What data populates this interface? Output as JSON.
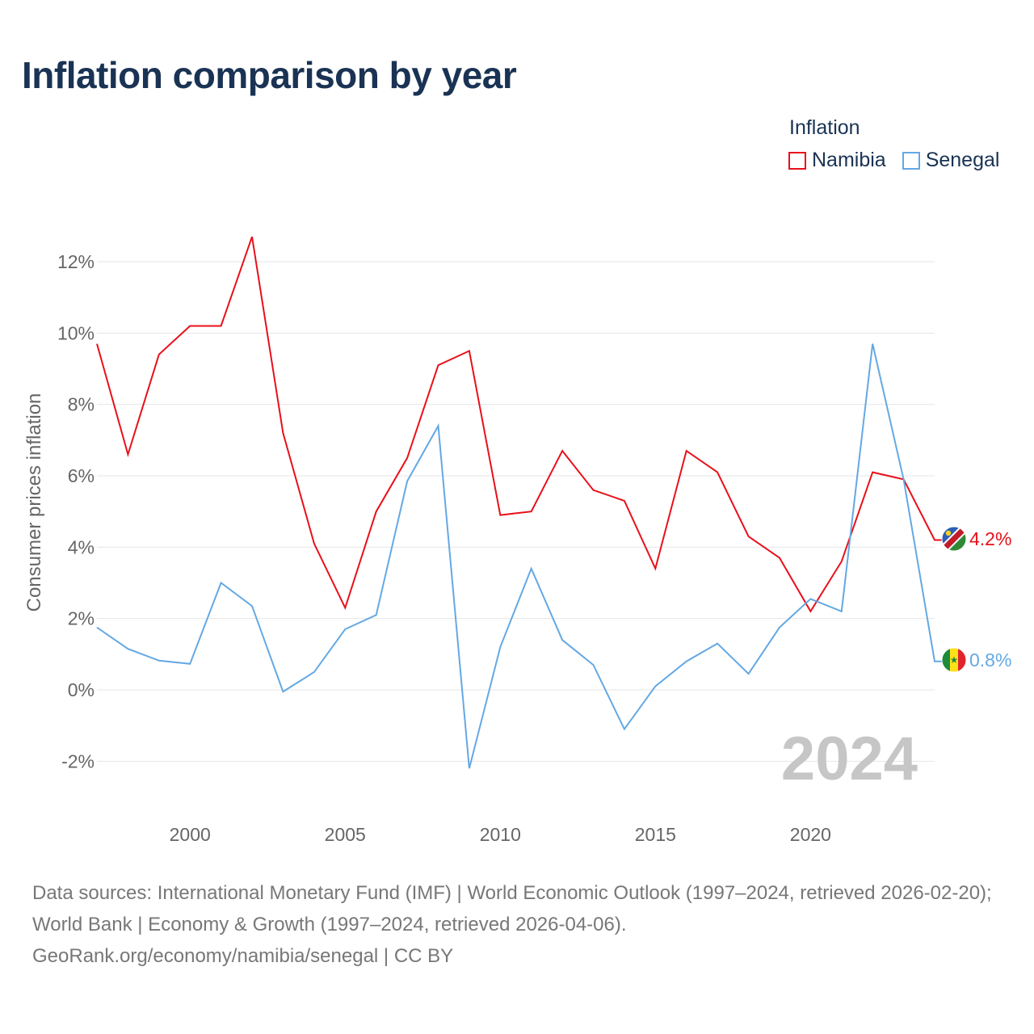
{
  "title": "Inflation comparison by year",
  "legend": {
    "title": "Inflation",
    "items": [
      {
        "name": "Namibia",
        "color": "#e8101a"
      },
      {
        "name": "Senegal",
        "color": "#64a8e4"
      }
    ]
  },
  "chart_data": {
    "type": "line",
    "title": "Inflation comparison by year",
    "xlabel": "",
    "ylabel": "Consumer prices inflation",
    "xlim": [
      1997,
      2024
    ],
    "ylim": [
      -3,
      13
    ],
    "x_ticks": [
      2000,
      2005,
      2010,
      2015,
      2020
    ],
    "y_ticks": [
      -2,
      0,
      2,
      4,
      6,
      8,
      10,
      12
    ],
    "y_tick_labels": [
      "-2%",
      "0%",
      "2%",
      "4%",
      "6%",
      "8%",
      "10%",
      "12%"
    ],
    "grid": true,
    "watermark_year": "2024",
    "x": [
      1997,
      1998,
      1999,
      2000,
      2001,
      2002,
      2003,
      2004,
      2005,
      2006,
      2007,
      2008,
      2009,
      2010,
      2011,
      2012,
      2013,
      2014,
      2015,
      2016,
      2017,
      2018,
      2019,
      2020,
      2021,
      2022,
      2023,
      2024
    ],
    "series": [
      {
        "name": "Namibia",
        "color": "#e8101a",
        "end_label": "4.2%",
        "values": [
          9.7,
          6.6,
          9.4,
          10.2,
          10.2,
          12.7,
          7.2,
          4.1,
          2.3,
          5.0,
          6.5,
          9.1,
          9.5,
          4.9,
          5.0,
          6.7,
          5.6,
          5.3,
          3.4,
          6.7,
          6.1,
          4.3,
          3.7,
          2.2,
          3.6,
          6.1,
          5.9,
          4.2
        ]
      },
      {
        "name": "Senegal",
        "color": "#64a8e4",
        "end_label": "0.8%",
        "values": [
          1.75,
          1.15,
          0.82,
          0.73,
          3.0,
          2.35,
          -0.05,
          0.5,
          1.7,
          2.1,
          5.85,
          7.4,
          -2.2,
          1.2,
          3.4,
          1.4,
          0.7,
          -1.1,
          0.1,
          0.8,
          1.3,
          0.45,
          1.75,
          2.55,
          2.2,
          9.7,
          5.9,
          0.8
        ]
      }
    ]
  },
  "footer": {
    "sources": "Data sources: International Monetary Fund (IMF) | World Economic Outlook (1997–2024, retrieved 2026-02-20); World Bank | Economy & Growth (1997–2024, retrieved 2026-04-06).",
    "credit": "GeoRank.org/economy/namibia/senegal | CC BY"
  }
}
